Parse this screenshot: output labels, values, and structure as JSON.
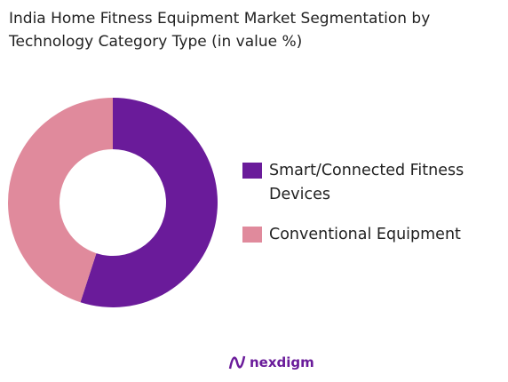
{
  "chart_data": {
    "type": "donut",
    "title": "India Home Fitness Equipment Market Segmentation by Technology Category Type (in value %)",
    "categories": [
      "Smart/Connected Fitness Devices",
      "Conventional Equipment"
    ],
    "values": [
      55,
      45
    ],
    "colors": [
      "#6a1b9a",
      "#e08a9c"
    ]
  },
  "footer": {
    "brand": "nexdigm"
  }
}
